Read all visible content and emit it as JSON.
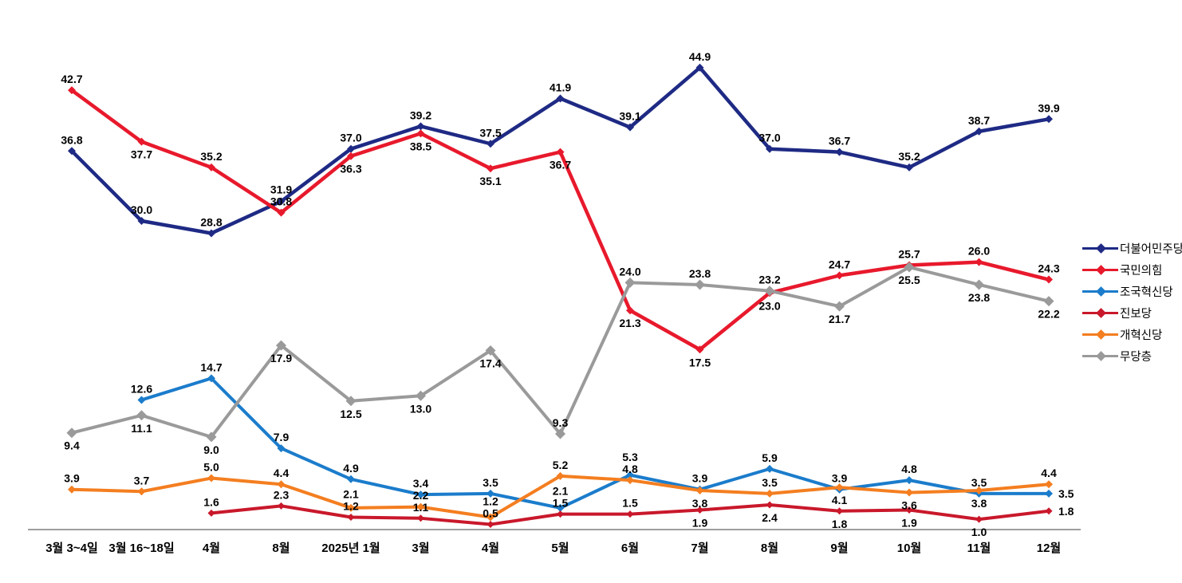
{
  "chart_data": {
    "type": "line",
    "title": "",
    "xlabel": "",
    "ylabel": "",
    "ylim": [
      0,
      47
    ],
    "grid": false,
    "legend_position": "right",
    "axis_line_color": "#7F7F7F",
    "label_color": "#000000",
    "categories": [
      "3월 3~4일",
      "3월 16~18일",
      "4월",
      "8월",
      "2025년 1월",
      "3월",
      "4월",
      "5월",
      "6월",
      "7월",
      "8월",
      "9월",
      "10월",
      "11월",
      "12월"
    ],
    "series": [
      {
        "name": "더불어민주당",
        "color": "#1E2A84",
        "values": [
          36.8,
          30.0,
          28.8,
          31.9,
          37.0,
          39.2,
          37.5,
          41.9,
          39.1,
          44.9,
          37.0,
          36.7,
          35.2,
          38.7,
          39.9
        ],
        "label_side": [
          "above",
          "above",
          "above",
          "above",
          "above",
          "above",
          "above",
          "above",
          "above",
          "above",
          "above",
          "above",
          "above",
          "above",
          "above"
        ]
      },
      {
        "name": "국민의힘",
        "color": "#E8192C",
        "values": [
          42.7,
          37.7,
          35.2,
          30.8,
          36.3,
          38.5,
          35.1,
          36.7,
          21.3,
          17.5,
          23.0,
          24.7,
          25.7,
          26.0,
          24.3
        ],
        "label_side": [
          "above",
          "below",
          "above",
          "above",
          "below",
          "below",
          "below",
          "below",
          "below",
          "below",
          "below",
          "above",
          "above",
          "above",
          "above"
        ]
      },
      {
        "name": "조국혁신당",
        "color": "#1B7CCB",
        "values": [
          null,
          12.6,
          14.7,
          7.9,
          4.9,
          3.4,
          3.5,
          2.1,
          5.3,
          3.9,
          5.9,
          3.9,
          4.8,
          3.5,
          3.5
        ],
        "label_side": [
          null,
          "above",
          "above",
          "above",
          "above",
          "above",
          "above",
          "above",
          "above",
          "above",
          "above",
          "above",
          "above",
          "above",
          "right"
        ]
      },
      {
        "name": "진보당",
        "color": "#C9182B",
        "values": [
          null,
          null,
          1.6,
          2.3,
          1.2,
          1.1,
          0.5,
          1.5,
          1.5,
          1.9,
          2.4,
          1.8,
          1.9,
          1.0,
          1.8
        ],
        "label_side": [
          null,
          null,
          "above",
          "above",
          "above",
          "above",
          "above",
          "above",
          "above",
          "below",
          "below",
          "below",
          "below",
          "below",
          "right"
        ]
      },
      {
        "name": "개혁신당",
        "color": "#F47E20",
        "values": [
          3.9,
          3.7,
          5.0,
          4.4,
          2.1,
          2.2,
          1.2,
          5.2,
          4.8,
          3.8,
          3.5,
          4.1,
          3.6,
          3.8,
          4.4
        ],
        "label_side": [
          "above",
          "above",
          "above",
          "above",
          "above",
          "above",
          "above",
          "above",
          "above",
          "below",
          "above",
          "below",
          "below",
          "below",
          "above"
        ]
      },
      {
        "name": "무당층",
        "color": "#9A9A9A",
        "values": [
          9.4,
          11.1,
          9.0,
          17.9,
          12.5,
          13.0,
          17.4,
          9.3,
          24.0,
          23.8,
          23.2,
          21.7,
          25.5,
          23.8,
          22.2
        ],
        "label_side": [
          "below",
          "below",
          "below",
          "below",
          "below",
          "below",
          "below",
          "above",
          "above",
          "above",
          "above",
          "below",
          "below",
          "below",
          "below"
        ]
      }
    ]
  }
}
